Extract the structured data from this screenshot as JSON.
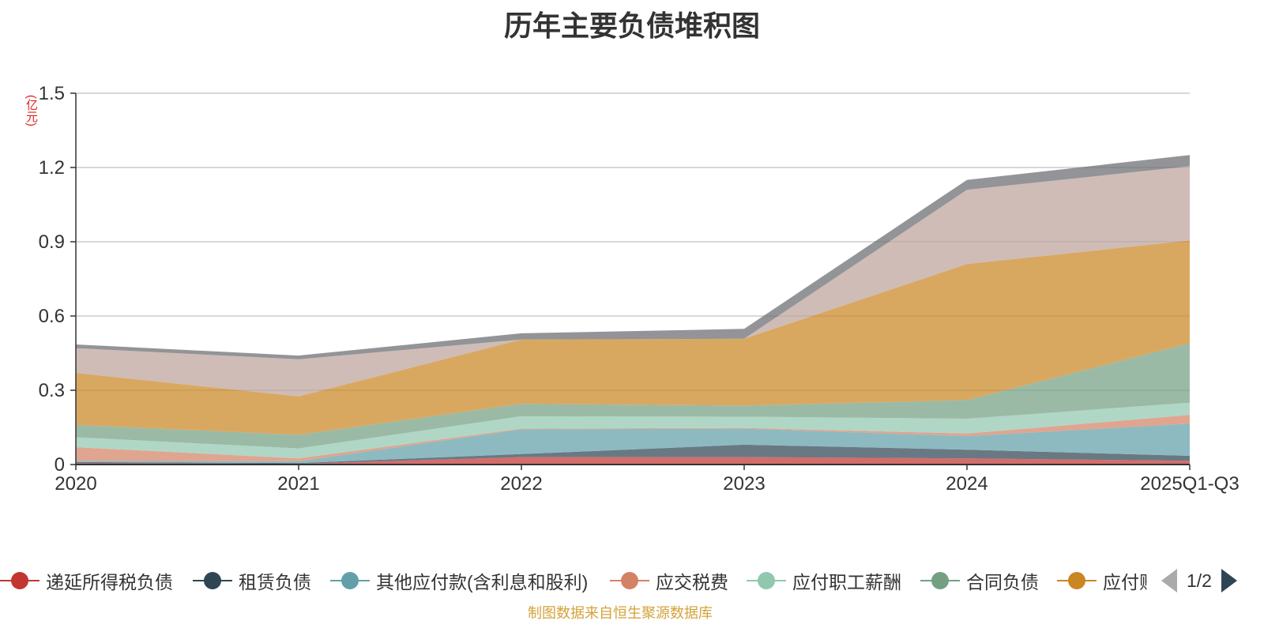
{
  "chart_data": {
    "type": "area",
    "title": "历年主要负债堆积图",
    "unit_label": "(亿元)",
    "stacked": true,
    "categories": [
      "2020",
      "2021",
      "2022",
      "2023",
      "2024",
      "2025Q1-Q3"
    ],
    "ylim": [
      0,
      1.5
    ],
    "yticks": [
      "0",
      "0.3",
      "0.6",
      "0.9",
      "1.2",
      "1.5"
    ],
    "grid": true,
    "series": [
      {
        "name": "递延所得税负债",
        "color": "#c23531",
        "values": [
          0.005,
          0.003,
          0.03,
          0.03,
          0.025,
          0.015
        ]
      },
      {
        "name": "租赁负债",
        "color": "#2f4554",
        "values": [
          0.005,
          0.003,
          0.012,
          0.05,
          0.035,
          0.02
        ]
      },
      {
        "name": "其他应付款(含利息和股利)",
        "color": "#61a0a8",
        "values": [
          0.005,
          0.007,
          0.1,
          0.065,
          0.055,
          0.13
        ]
      },
      {
        "name": "应交税费",
        "color": "#d48265",
        "values": [
          0.055,
          0.012,
          0.003,
          0.003,
          0.01,
          0.035
        ]
      },
      {
        "name": "应付职工薪酬",
        "color": "#91c7ae",
        "values": [
          0.04,
          0.04,
          0.05,
          0.045,
          0.06,
          0.05
        ]
      },
      {
        "name": "合同负债",
        "color": "#749f83",
        "values": [
          0.05,
          0.055,
          0.05,
          0.045,
          0.075,
          0.24
        ]
      },
      {
        "name": "应付账款",
        "color": "#ca8622",
        "values": [
          0.21,
          0.155,
          0.26,
          0.27,
          0.55,
          0.415
        ]
      },
      {
        "name": "",
        "color": "#bda29a",
        "values": [
          0.1,
          0.15,
          0.0,
          0.0,
          0.3,
          0.3
        ]
      },
      {
        "name": "",
        "color": "#6e7074",
        "values": [
          0.015,
          0.015,
          0.025,
          0.04,
          0.04,
          0.045
        ]
      }
    ],
    "legend_position": "bottom"
  },
  "legend": {
    "items": [
      {
        "label": "递延所得税负债",
        "color": "#c23531"
      },
      {
        "label": "租赁负债",
        "color": "#2f4554"
      },
      {
        "label": "其他应付款(含利息和股利)",
        "color": "#61a0a8"
      },
      {
        "label": "应交税费",
        "color": "#d48265"
      },
      {
        "label": "应付职工薪酬",
        "color": "#91c7ae"
      },
      {
        "label": "合同负债",
        "color": "#749f83"
      },
      {
        "label": "应付账款",
        "color": "#ca8622"
      }
    ],
    "page_indicator": "1/2"
  },
  "source_note": "制图数据来自恒生聚源数据库"
}
